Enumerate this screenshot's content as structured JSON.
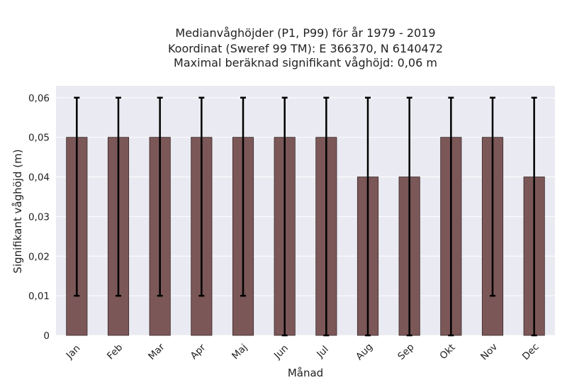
{
  "chart_data": {
    "type": "bar",
    "title_lines": [
      "Medianvåghöjder (P1, P99) för år 1979 - 2019",
      "Koordinat (Sweref 99 TM): E 366370, N 6140472",
      "Maximal beräknad signifikant våghöjd: 0,06 m"
    ],
    "xlabel": "Månad",
    "ylabel": "Signifikant våghöjd (m)",
    "categories": [
      "Jan",
      "Feb",
      "Mar",
      "Apr",
      "Maj",
      "Jun",
      "Jul",
      "Aug",
      "Sep",
      "Okt",
      "Nov",
      "Dec"
    ],
    "values": [
      0.05,
      0.05,
      0.05,
      0.05,
      0.05,
      0.05,
      0.05,
      0.04,
      0.04,
      0.05,
      0.05,
      0.04
    ],
    "error_low": [
      0.01,
      0.01,
      0.01,
      0.01,
      0.01,
      0.0,
      0.0,
      0.0,
      0.0,
      0.0,
      0.01,
      0.0
    ],
    "error_high": [
      0.06,
      0.06,
      0.06,
      0.06,
      0.06,
      0.06,
      0.06,
      0.06,
      0.06,
      0.06,
      0.06,
      0.06
    ],
    "ylim": [
      0,
      0.063
    ],
    "yticks": [
      0,
      0.01,
      0.02,
      0.03,
      0.04,
      0.05,
      0.06
    ],
    "ytick_labels": [
      "0",
      "0,01",
      "0,02",
      "0,03",
      "0,04",
      "0,05",
      "0,06"
    ],
    "grid": true,
    "colors": {
      "bar": "#7b5757",
      "bar_edge": "#3a2a2a",
      "error_bar": "#000000",
      "plot_background": "#eaeaf2",
      "grid": "#ffffff"
    }
  }
}
